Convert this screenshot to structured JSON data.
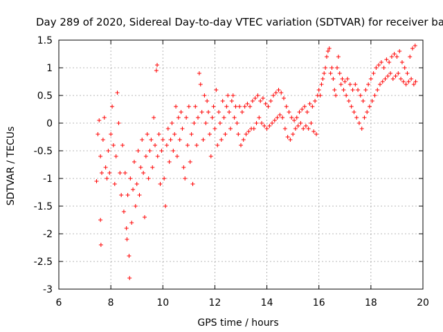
{
  "chart_data": {
    "type": "scatter",
    "title": "Day 289 of 2020, Sidereal Day-to-day VTEC variation (SDTVAR) for receiver bake",
    "xlabel": "GPS time / hours",
    "ylabel": "SDTVAR / TECUs",
    "xlim": [
      6,
      20
    ],
    "ylim": [
      -3,
      1.5
    ],
    "grid": true,
    "x_ticks": [
      6,
      8,
      10,
      12,
      14,
      16,
      18,
      20
    ],
    "x_tick_labels": [
      "6",
      "8",
      "10",
      "12",
      "14",
      "16",
      "18",
      "20"
    ],
    "y_ticks": [
      -3,
      -2.5,
      -2,
      -1.5,
      -1,
      -0.5,
      0,
      0.5,
      1,
      1.5
    ],
    "y_tick_labels": [
      "-3",
      "-2.5",
      "-2",
      "-1.5",
      "-1",
      "-0.5",
      "0",
      "0.5",
      "1",
      "1.5"
    ],
    "marker": "+",
    "series": [
      {
        "name": "SDTVAR",
        "color": "#ff0000",
        "points": [
          [
            7.45,
            -1.05
          ],
          [
            7.5,
            -0.2
          ],
          [
            7.55,
            0.05
          ],
          [
            7.6,
            -0.6
          ],
          [
            7.6,
            -1.75
          ],
          [
            7.62,
            -2.2
          ],
          [
            7.65,
            -0.9
          ],
          [
            7.7,
            -0.3
          ],
          [
            7.75,
            0.1
          ],
          [
            7.8,
            -0.8
          ],
          [
            7.85,
            -1.0
          ],
          [
            7.9,
            -0.5
          ],
          [
            7.95,
            -0.9
          ],
          [
            8.0,
            -0.2
          ],
          [
            8.05,
            0.3
          ],
          [
            8.1,
            -0.4
          ],
          [
            8.15,
            -1.1
          ],
          [
            8.2,
            -0.6
          ],
          [
            8.25,
            0.55
          ],
          [
            8.3,
            0.0
          ],
          [
            8.35,
            -0.9
          ],
          [
            8.4,
            -1.3
          ],
          [
            8.45,
            -0.4
          ],
          [
            8.5,
            -1.6
          ],
          [
            8.55,
            -0.9
          ],
          [
            8.6,
            -1.9
          ],
          [
            8.62,
            -2.1
          ],
          [
            8.65,
            -1.3
          ],
          [
            8.7,
            -2.4
          ],
          [
            8.72,
            -2.8
          ],
          [
            8.75,
            -1.0
          ],
          [
            8.8,
            -1.8
          ],
          [
            8.85,
            -1.2
          ],
          [
            8.9,
            -0.7
          ],
          [
            8.95,
            -1.5
          ],
          [
            9.0,
            -1.1
          ],
          [
            9.05,
            -0.5
          ],
          [
            9.1,
            -1.3
          ],
          [
            9.15,
            -0.8
          ],
          [
            9.2,
            -0.3
          ],
          [
            9.25,
            -0.9
          ],
          [
            9.3,
            -1.7
          ],
          [
            9.35,
            -0.6
          ],
          [
            9.4,
            -0.2
          ],
          [
            9.45,
            -1.0
          ],
          [
            9.5,
            -0.5
          ],
          [
            9.55,
            -0.3
          ],
          [
            9.6,
            -0.8
          ],
          [
            9.65,
            0.1
          ],
          [
            9.7,
            -0.4
          ],
          [
            9.75,
            0.95
          ],
          [
            9.78,
            1.05
          ],
          [
            9.8,
            -0.6
          ],
          [
            9.85,
            -0.2
          ],
          [
            9.9,
            -1.1
          ],
          [
            9.95,
            -0.5
          ],
          [
            10.0,
            -0.3
          ],
          [
            10.05,
            -1.0
          ],
          [
            10.1,
            -1.5
          ],
          [
            10.15,
            -0.4
          ],
          [
            10.2,
            -0.1
          ],
          [
            10.25,
            -0.7
          ],
          [
            10.3,
            -0.3
          ],
          [
            10.35,
            0.0
          ],
          [
            10.4,
            -0.5
          ],
          [
            10.45,
            -0.2
          ],
          [
            10.5,
            0.3
          ],
          [
            10.55,
            -0.6
          ],
          [
            10.6,
            0.1
          ],
          [
            10.65,
            -0.3
          ],
          [
            10.7,
            0.2
          ],
          [
            10.75,
            -0.1
          ],
          [
            10.8,
            -0.8
          ],
          [
            10.85,
            -1.0
          ],
          [
            10.9,
            0.1
          ],
          [
            10.95,
            -0.4
          ],
          [
            11.0,
            0.3
          ],
          [
            11.05,
            -0.7
          ],
          [
            11.1,
            -0.2
          ],
          [
            11.15,
            -1.1
          ],
          [
            11.2,
            0.0
          ],
          [
            11.25,
            0.3
          ],
          [
            11.3,
            -0.4
          ],
          [
            11.35,
            0.1
          ],
          [
            11.4,
            0.9
          ],
          [
            11.45,
            0.7
          ],
          [
            11.5,
            0.2
          ],
          [
            11.55,
            -0.3
          ],
          [
            11.6,
            0.5
          ],
          [
            11.65,
            0.0
          ],
          [
            11.7,
            0.4
          ],
          [
            11.75,
            0.2
          ],
          [
            11.8,
            -0.2
          ],
          [
            11.85,
            -0.6
          ],
          [
            11.9,
            0.1
          ],
          [
            11.95,
            0.3
          ],
          [
            12.0,
            -0.1
          ],
          [
            12.05,
            0.6
          ],
          [
            12.1,
            -0.4
          ],
          [
            12.15,
            0.2
          ],
          [
            12.2,
            0.0
          ],
          [
            12.25,
            -0.3
          ],
          [
            12.3,
            0.4
          ],
          [
            12.35,
            0.1
          ],
          [
            12.4,
            -0.2
          ],
          [
            12.45,
            0.3
          ],
          [
            12.5,
            0.5
          ],
          [
            12.55,
            0.2
          ],
          [
            12.6,
            -0.1
          ],
          [
            12.65,
            0.4
          ],
          [
            12.7,
            0.5
          ],
          [
            12.75,
            0.1
          ],
          [
            12.8,
            0.3
          ],
          [
            12.85,
            0.0
          ],
          [
            12.9,
            -0.2
          ],
          [
            12.95,
            0.3
          ],
          [
            13.0,
            -0.4
          ],
          [
            13.05,
            0.2
          ],
          [
            13.1,
            -0.3
          ],
          [
            13.15,
            0.3
          ],
          [
            13.2,
            -0.2
          ],
          [
            13.25,
            0.35
          ],
          [
            13.3,
            -0.15
          ],
          [
            13.35,
            0.3
          ],
          [
            13.4,
            -0.1
          ],
          [
            13.45,
            0.4
          ],
          [
            13.5,
            -0.1
          ],
          [
            13.55,
            0.45
          ],
          [
            13.6,
            0.0
          ],
          [
            13.65,
            0.5
          ],
          [
            13.7,
            0.1
          ],
          [
            13.75,
            0.4
          ],
          [
            13.8,
            0.0
          ],
          [
            13.85,
            0.45
          ],
          [
            13.9,
            -0.05
          ],
          [
            13.95,
            0.35
          ],
          [
            14.0,
            -0.1
          ],
          [
            14.05,
            0.3
          ],
          [
            14.1,
            -0.05
          ],
          [
            14.15,
            0.4
          ],
          [
            14.2,
            0.0
          ],
          [
            14.25,
            0.5
          ],
          [
            14.3,
            0.05
          ],
          [
            14.35,
            0.55
          ],
          [
            14.4,
            0.1
          ],
          [
            14.45,
            0.6
          ],
          [
            14.5,
            0.15
          ],
          [
            14.55,
            0.55
          ],
          [
            14.6,
            0.1
          ],
          [
            14.65,
            0.45
          ],
          [
            14.7,
            -0.1
          ],
          [
            14.75,
            0.3
          ],
          [
            14.8,
            -0.25
          ],
          [
            14.85,
            0.2
          ],
          [
            14.9,
            -0.3
          ],
          [
            14.95,
            0.1
          ],
          [
            15.0,
            -0.2
          ],
          [
            15.05,
            0.05
          ],
          [
            15.1,
            -0.1
          ],
          [
            15.15,
            0.1
          ],
          [
            15.2,
            -0.05
          ],
          [
            15.25,
            0.2
          ],
          [
            15.3,
            0.0
          ],
          [
            15.35,
            0.25
          ],
          [
            15.4,
            -0.1
          ],
          [
            15.45,
            0.3
          ],
          [
            15.5,
            -0.05
          ],
          [
            15.55,
            0.2
          ],
          [
            15.6,
            -0.1
          ],
          [
            15.65,
            0.35
          ],
          [
            15.7,
            0.0
          ],
          [
            15.75,
            0.3
          ],
          [
            15.8,
            -0.15
          ],
          [
            15.85,
            0.4
          ],
          [
            15.9,
            -0.2
          ],
          [
            15.95,
            0.5
          ],
          [
            16.0,
            0.6
          ],
          [
            16.05,
            0.5
          ],
          [
            16.1,
            0.7
          ],
          [
            16.15,
            0.8
          ],
          [
            16.2,
            0.9
          ],
          [
            16.25,
            1.0
          ],
          [
            16.3,
            1.2
          ],
          [
            16.35,
            1.3
          ],
          [
            16.4,
            1.35
          ],
          [
            16.45,
            0.9
          ],
          [
            16.5,
            1.0
          ],
          [
            16.55,
            0.8
          ],
          [
            16.6,
            0.6
          ],
          [
            16.65,
            0.5
          ],
          [
            16.7,
            1.0
          ],
          [
            16.75,
            1.2
          ],
          [
            16.8,
            0.9
          ],
          [
            16.85,
            0.7
          ],
          [
            16.9,
            0.8
          ],
          [
            16.95,
            0.6
          ],
          [
            17.0,
            0.75
          ],
          [
            17.05,
            0.5
          ],
          [
            17.1,
            0.8
          ],
          [
            17.15,
            0.4
          ],
          [
            17.2,
            0.7
          ],
          [
            17.25,
            0.3
          ],
          [
            17.3,
            0.6
          ],
          [
            17.35,
            0.2
          ],
          [
            17.4,
            0.7
          ],
          [
            17.45,
            0.1
          ],
          [
            17.5,
            0.6
          ],
          [
            17.55,
            0.0
          ],
          [
            17.6,
            0.5
          ],
          [
            17.65,
            -0.1
          ],
          [
            17.7,
            0.4
          ],
          [
            17.75,
            0.1
          ],
          [
            17.8,
            0.6
          ],
          [
            17.85,
            0.2
          ],
          [
            17.9,
            0.7
          ],
          [
            17.95,
            0.3
          ],
          [
            18.0,
            0.8
          ],
          [
            18.05,
            0.4
          ],
          [
            18.1,
            0.9
          ],
          [
            18.15,
            0.5
          ],
          [
            18.2,
            1.0
          ],
          [
            18.25,
            0.6
          ],
          [
            18.3,
            1.05
          ],
          [
            18.35,
            0.7
          ],
          [
            18.4,
            1.1
          ],
          [
            18.45,
            0.75
          ],
          [
            18.5,
            1.0
          ],
          [
            18.55,
            0.8
          ],
          [
            18.6,
            1.15
          ],
          [
            18.65,
            0.85
          ],
          [
            18.7,
            1.1
          ],
          [
            18.75,
            0.9
          ],
          [
            18.8,
            1.2
          ],
          [
            18.85,
            0.8
          ],
          [
            18.9,
            1.25
          ],
          [
            18.95,
            0.85
          ],
          [
            19.0,
            1.2
          ],
          [
            19.05,
            0.9
          ],
          [
            19.1,
            1.3
          ],
          [
            19.15,
            0.8
          ],
          [
            19.2,
            1.1
          ],
          [
            19.25,
            0.75
          ],
          [
            19.3,
            1.0
          ],
          [
            19.35,
            0.7
          ],
          [
            19.4,
            0.9
          ],
          [
            19.45,
            0.75
          ],
          [
            19.5,
            1.2
          ],
          [
            19.55,
            0.8
          ],
          [
            19.6,
            1.35
          ],
          [
            19.65,
            0.7
          ],
          [
            19.7,
            1.4
          ],
          [
            19.72,
            0.75
          ]
        ]
      }
    ]
  }
}
